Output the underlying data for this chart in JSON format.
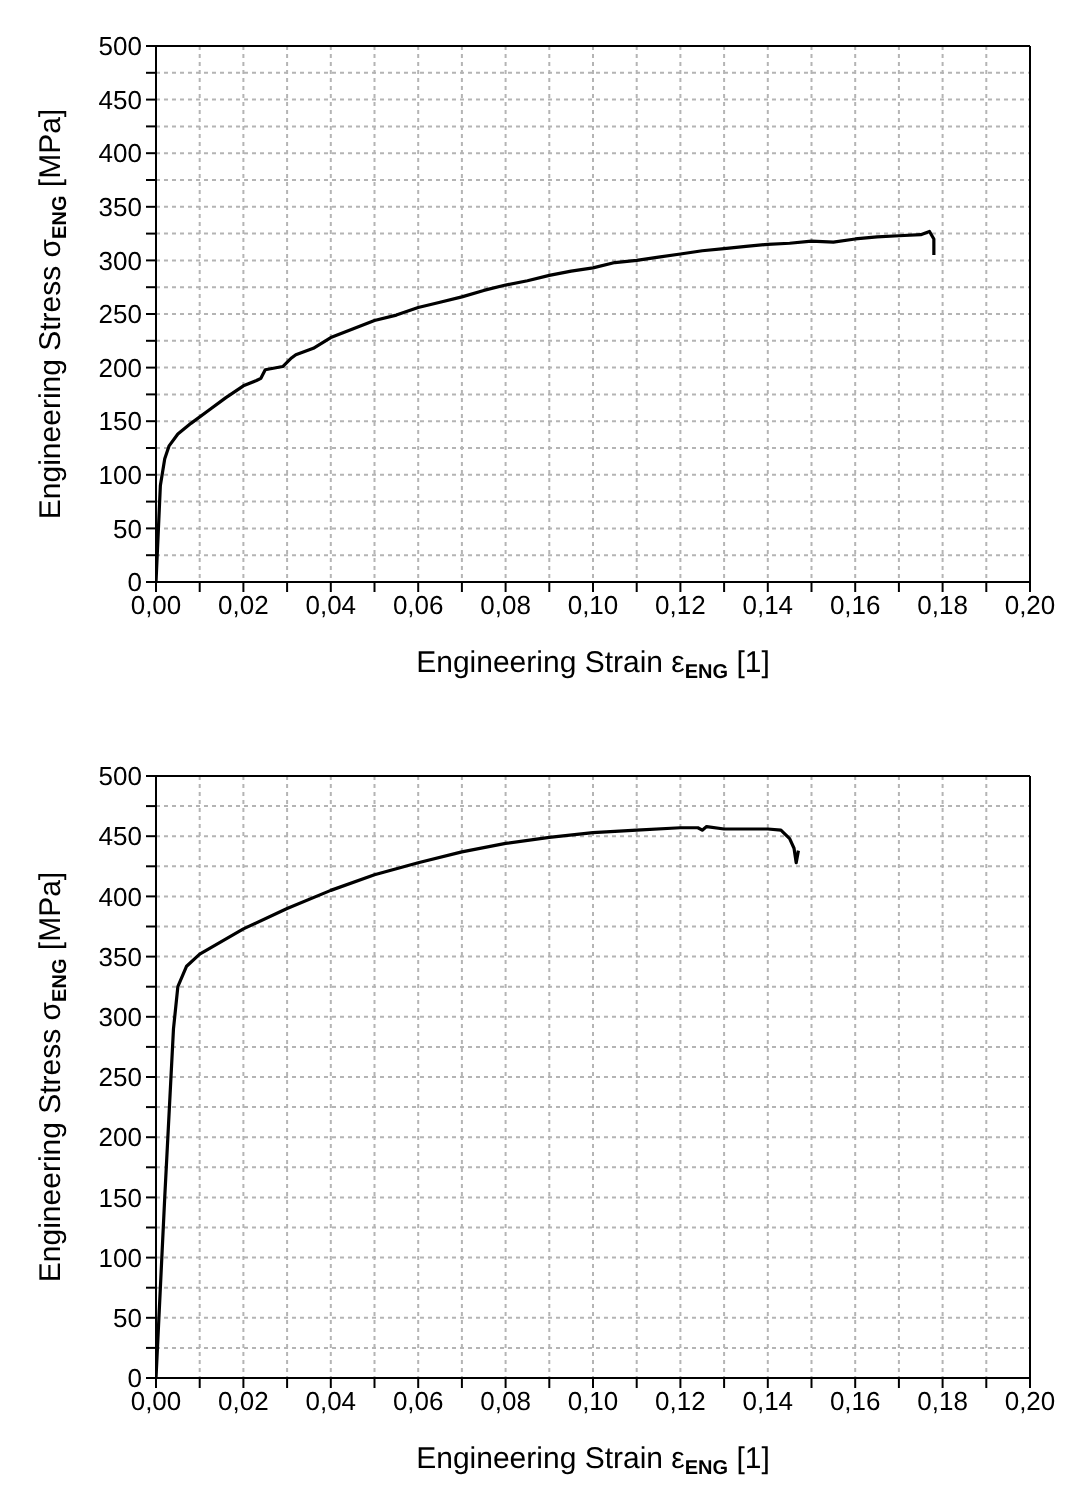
{
  "chart_data": [
    {
      "type": "line",
      "xlabel": "Engineering Strain ε$_{ENG}$ [1]",
      "ylabel": "Engineering Stress σ$_{ENG}$ [MPa]",
      "grid": true,
      "line_style": "solid",
      "marker": "none",
      "xlim": [
        0,
        0.2
      ],
      "ylim": [
        0,
        500
      ],
      "xticks": [
        {
          "value": 0,
          "label": "0,00"
        },
        {
          "value": 0.01,
          "label": null
        },
        {
          "value": 0.02,
          "label": "0,02"
        },
        {
          "value": 0.03,
          "label": null
        },
        {
          "value": 0.04,
          "label": "0,04"
        },
        {
          "value": 0.05,
          "label": null
        },
        {
          "value": 0.06,
          "label": "0,06"
        },
        {
          "value": 0.07,
          "label": null
        },
        {
          "value": 0.08,
          "label": "0,08"
        },
        {
          "value": 0.09,
          "label": null
        },
        {
          "value": 0.1,
          "label": "0,10"
        },
        {
          "value": 0.11,
          "label": null
        },
        {
          "value": 0.12,
          "label": "0,12"
        },
        {
          "value": 0.13,
          "label": null
        },
        {
          "value": 0.14,
          "label": "0,14"
        },
        {
          "value": 0.15,
          "label": null
        },
        {
          "value": 0.16,
          "label": "0,16"
        },
        {
          "value": 0.17,
          "label": null
        },
        {
          "value": 0.18,
          "label": "0,18"
        },
        {
          "value": 0.19,
          "label": null
        },
        {
          "value": 0.2,
          "label": "0,20"
        }
      ],
      "yticks": [
        0,
        {
          "value": 25,
          "label": null
        },
        50,
        {
          "value": 75,
          "label": null
        },
        100,
        {
          "value": 125,
          "label": null
        },
        150,
        {
          "value": 175,
          "label": null
        },
        200,
        {
          "value": 225,
          "label": null
        },
        250,
        {
          "value": 275,
          "label": null
        },
        300,
        {
          "value": 325,
          "label": null
        },
        350,
        {
          "value": 375,
          "label": null
        },
        400,
        {
          "value": 425,
          "label": null
        },
        450,
        {
          "value": 475,
          "label": null
        },
        500
      ],
      "series": [
        {
          "color": "#000000",
          "x": [
            0,
            0.001,
            0.002,
            0.003,
            0.005,
            0.008,
            0.012,
            0.016,
            0.02,
            0.023,
            0.024,
            0.025,
            0.029,
            0.031,
            0.032,
            0.036,
            0.04,
            0.045,
            0.05,
            0.055,
            0.06,
            0.065,
            0.07,
            0.075,
            0.08,
            0.085,
            0.09,
            0.095,
            0.1,
            0.105,
            0.11,
            0.115,
            0.12,
            0.125,
            0.13,
            0.135,
            0.14,
            0.145,
            0.15,
            0.155,
            0.16,
            0.165,
            0.17,
            0.175,
            0.177,
            0.178,
            0.178
          ],
          "values": [
            0,
            90,
            115,
            127,
            138,
            148,
            160,
            172,
            183,
            188,
            190,
            198,
            201,
            209,
            212,
            218,
            228,
            236,
            244,
            249,
            256,
            261,
            266,
            272,
            277,
            281,
            286,
            290,
            293,
            298,
            300,
            303,
            306,
            309,
            311,
            313,
            315,
            316,
            318,
            317,
            320,
            322,
            323,
            324,
            327,
            320,
            305
          ]
        }
      ]
    },
    {
      "type": "line",
      "xlabel": "Engineering Strain ε$_{ENG}$ [1]",
      "ylabel": "Engineering Stress σ$_{ENG}$ [MPa]",
      "grid": true,
      "line_style": "solid",
      "marker": "none",
      "xlim": [
        0,
        0.2
      ],
      "ylim": [
        0,
        500
      ],
      "xticks": [
        {
          "value": 0,
          "label": "0,00"
        },
        {
          "value": 0.01,
          "label": null
        },
        {
          "value": 0.02,
          "label": "0,02"
        },
        {
          "value": 0.03,
          "label": null
        },
        {
          "value": 0.04,
          "label": "0,04"
        },
        {
          "value": 0.05,
          "label": null
        },
        {
          "value": 0.06,
          "label": "0,06"
        },
        {
          "value": 0.07,
          "label": null
        },
        {
          "value": 0.08,
          "label": "0,08"
        },
        {
          "value": 0.09,
          "label": null
        },
        {
          "value": 0.1,
          "label": "0,10"
        },
        {
          "value": 0.11,
          "label": null
        },
        {
          "value": 0.12,
          "label": "0,12"
        },
        {
          "value": 0.13,
          "label": null
        },
        {
          "value": 0.14,
          "label": "0,14"
        },
        {
          "value": 0.15,
          "label": null
        },
        {
          "value": 0.16,
          "label": "0,16"
        },
        {
          "value": 0.17,
          "label": null
        },
        {
          "value": 0.18,
          "label": "0,18"
        },
        {
          "value": 0.19,
          "label": null
        },
        {
          "value": 0.2,
          "label": "0,20"
        }
      ],
      "yticks": [
        0,
        {
          "value": 25,
          "label": null
        },
        50,
        {
          "value": 75,
          "label": null
        },
        100,
        {
          "value": 125,
          "label": null
        },
        150,
        {
          "value": 175,
          "label": null
        },
        200,
        {
          "value": 225,
          "label": null
        },
        250,
        {
          "value": 275,
          "label": null
        },
        300,
        {
          "value": 325,
          "label": null
        },
        350,
        {
          "value": 375,
          "label": null
        },
        400,
        {
          "value": 425,
          "label": null
        },
        450,
        {
          "value": 475,
          "label": null
        },
        500
      ],
      "series": [
        {
          "color": "#000000",
          "x": [
            0,
            0.002,
            0.004,
            0.005,
            0.007,
            0.01,
            0.02,
            0.03,
            0.04,
            0.05,
            0.06,
            0.07,
            0.08,
            0.09,
            0.1,
            0.11,
            0.12,
            0.124,
            0.125,
            0.126,
            0.13,
            0.14,
            0.143,
            0.145,
            0.146,
            0.1465,
            0.147
          ],
          "values": [
            0,
            150,
            290,
            325,
            342,
            352,
            373,
            390,
            405,
            418,
            428,
            437,
            444,
            449,
            453,
            455,
            457,
            457,
            455,
            458,
            456,
            456,
            455,
            448,
            440,
            428,
            438
          ]
        }
      ]
    }
  ]
}
